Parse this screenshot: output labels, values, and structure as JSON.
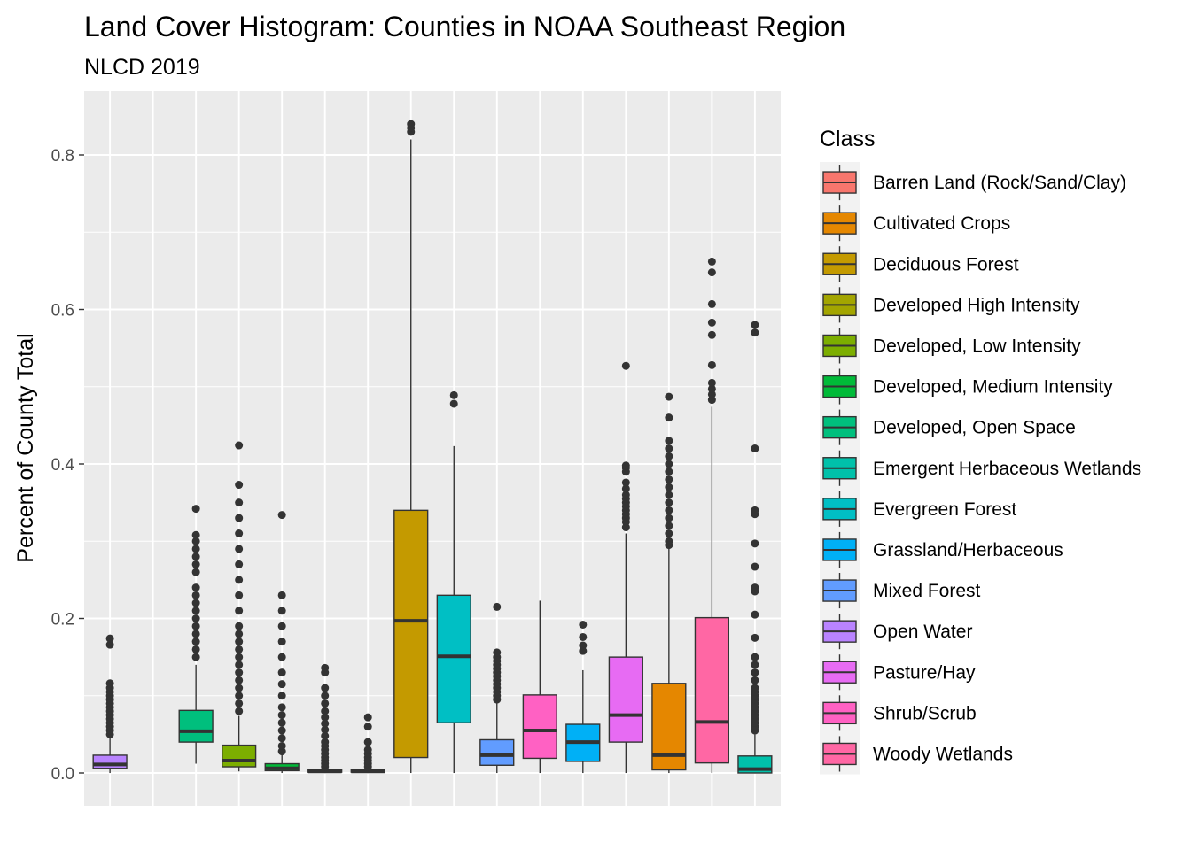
{
  "chart_data": {
    "type": "boxplot",
    "title": "Land Cover Histogram: Counties in NOAA Southeast Region",
    "subtitle": "NLCD 2019",
    "xlabel": "",
    "ylabel": "Percent of County Total",
    "ylim": [
      -0.04,
      0.88
    ],
    "yticks": [
      0.0,
      0.2,
      0.4,
      0.6,
      0.8
    ],
    "ytick_labels": [
      "0.0",
      "0.2",
      "0.4",
      "0.6",
      "0.8"
    ],
    "grid": true,
    "legend": {
      "title": "Class",
      "position": "right"
    },
    "series": [
      {
        "name": "Open Water",
        "color": "#B983FF",
        "stats": {
          "min": 0.0,
          "q1": 0.006,
          "median": 0.011,
          "q3": 0.023,
          "max": 0.05
        },
        "outliers": [
          0.05,
          0.055,
          0.06,
          0.065,
          0.07,
          0.075,
          0.08,
          0.085,
          0.09,
          0.095,
          0.1,
          0.105,
          0.11,
          0.116,
          0.166,
          0.174
        ]
      },
      {
        "name": "Barren Land (Rock/Sand/Clay)",
        "color": "#F8766D",
        "stats": null,
        "outliers": []
      },
      {
        "name": "Developed, Open Space",
        "color": "#00BF7D",
        "stats": {
          "min": 0.012,
          "q1": 0.04,
          "median": 0.054,
          "q3": 0.081,
          "max": 0.14
        },
        "outliers": [
          0.15,
          0.16,
          0.17,
          0.18,
          0.19,
          0.2,
          0.21,
          0.22,
          0.23,
          0.24,
          0.26,
          0.27,
          0.28,
          0.29,
          0.3,
          0.308,
          0.342
        ]
      },
      {
        "name": "Developed, Low Intensity",
        "color": "#7CAE00",
        "stats": {
          "min": 0.002,
          "q1": 0.008,
          "median": 0.016,
          "q3": 0.036,
          "max": 0.074
        },
        "outliers": [
          0.08,
          0.09,
          0.1,
          0.11,
          0.12,
          0.13,
          0.14,
          0.15,
          0.16,
          0.17,
          0.18,
          0.19,
          0.21,
          0.23,
          0.25,
          0.27,
          0.29,
          0.31,
          0.33,
          0.35,
          0.373,
          0.424
        ]
      },
      {
        "name": "Developed, Medium Intensity",
        "color": "#00BA38",
        "stats": {
          "min": 0.0,
          "q1": 0.003,
          "median": 0.006,
          "q3": 0.012,
          "max": 0.024
        },
        "outliers": [
          0.028,
          0.035,
          0.045,
          0.055,
          0.065,
          0.075,
          0.085,
          0.1,
          0.115,
          0.13,
          0.15,
          0.17,
          0.19,
          0.21,
          0.23,
          0.334
        ]
      },
      {
        "name": "Developed High Intensity",
        "color": "#A3A500",
        "stats": {
          "min": 0.0,
          "q1": 0.001,
          "median": 0.002,
          "q3": 0.004,
          "max": 0.006
        },
        "outliers": [
          0.008,
          0.012,
          0.016,
          0.02,
          0.025,
          0.03,
          0.035,
          0.04,
          0.048,
          0.056,
          0.064,
          0.072,
          0.08,
          0.09,
          0.1,
          0.11,
          0.13,
          0.136
        ]
      },
      {
        "name": "Barren Land (Rock/Sand/Clay)",
        "color": "#F8766D",
        "stats": {
          "min": 0.0,
          "q1": 0.001,
          "median": 0.002,
          "q3": 0.004,
          "max": 0.006
        },
        "outliers": [
          0.008,
          0.012,
          0.016,
          0.02,
          0.025,
          0.03,
          0.04,
          0.06,
          0.072
        ]
      },
      {
        "name": "Deciduous Forest",
        "color": "#C49A00",
        "stats": {
          "min": 0.0,
          "q1": 0.02,
          "median": 0.197,
          "q3": 0.34,
          "max": 0.82
        },
        "outliers": [
          0.83,
          0.835,
          0.84
        ]
      },
      {
        "name": "Evergreen Forest",
        "color": "#00BFC4",
        "stats": {
          "min": 0.0,
          "q1": 0.065,
          "median": 0.151,
          "q3": 0.23,
          "max": 0.423
        },
        "outliers": [
          0.478,
          0.489
        ]
      },
      {
        "name": "Mixed Forest",
        "color": "#619CFF",
        "stats": {
          "min": 0.0,
          "q1": 0.01,
          "median": 0.023,
          "q3": 0.043,
          "max": 0.09
        },
        "outliers": [
          0.095,
          0.1,
          0.105,
          0.11,
          0.115,
          0.12,
          0.125,
          0.13,
          0.135,
          0.14,
          0.145,
          0.15,
          0.156,
          0.215
        ]
      },
      {
        "name": "Shrub/Scrub",
        "color": "#FF61C3",
        "stats": {
          "min": 0.0,
          "q1": 0.019,
          "median": 0.055,
          "q3": 0.101,
          "max": 0.223
        },
        "outliers": []
      },
      {
        "name": "Grassland/Herbaceous",
        "color": "#00B0F6",
        "stats": {
          "min": 0.0,
          "q1": 0.015,
          "median": 0.04,
          "q3": 0.063,
          "max": 0.133
        },
        "outliers": [
          0.158,
          0.165,
          0.176,
          0.192
        ]
      },
      {
        "name": "Pasture/Hay",
        "color": "#E76BF3",
        "stats": {
          "min": 0.0,
          "q1": 0.04,
          "median": 0.075,
          "q3": 0.15,
          "max": 0.31
        },
        "outliers": [
          0.318,
          0.325,
          0.33,
          0.335,
          0.34,
          0.345,
          0.35,
          0.355,
          0.36,
          0.368,
          0.376,
          0.39,
          0.395,
          0.398,
          0.527
        ]
      },
      {
        "name": "Cultivated Crops",
        "color": "#E58700",
        "stats": {
          "min": 0.0,
          "q1": 0.004,
          "median": 0.023,
          "q3": 0.116,
          "max": 0.29
        },
        "outliers": [
          0.295,
          0.3,
          0.31,
          0.32,
          0.33,
          0.34,
          0.35,
          0.36,
          0.37,
          0.38,
          0.39,
          0.4,
          0.41,
          0.42,
          0.43,
          0.46,
          0.487
        ]
      },
      {
        "name": "Woody Wetlands",
        "color": "#FF67A4",
        "stats": {
          "min": 0.0,
          "q1": 0.013,
          "median": 0.066,
          "q3": 0.201,
          "max": 0.474
        },
        "outliers": [
          0.483,
          0.49,
          0.497,
          0.505,
          0.528,
          0.567,
          0.583,
          0.607,
          0.648,
          0.662
        ]
      },
      {
        "name": "Emergent Herbaceous Wetlands",
        "color": "#00C1AA",
        "stats": {
          "min": 0.0,
          "q1": 0.0,
          "median": 0.005,
          "q3": 0.022,
          "max": 0.05
        },
        "outliers": [
          0.055,
          0.06,
          0.065,
          0.07,
          0.075,
          0.08,
          0.085,
          0.09,
          0.095,
          0.1,
          0.105,
          0.11,
          0.12,
          0.13,
          0.14,
          0.15,
          0.175,
          0.205,
          0.235,
          0.24,
          0.267,
          0.297,
          0.335,
          0.34,
          0.42,
          0.57,
          0.58
        ]
      }
    ],
    "legend_entries": [
      {
        "label": "Barren Land (Rock/Sand/Clay)",
        "color": "#F8766D"
      },
      {
        "label": "Cultivated Crops",
        "color": "#E58700"
      },
      {
        "label": "Deciduous Forest",
        "color": "#C49A00"
      },
      {
        "label": "Developed High Intensity",
        "color": "#A3A500"
      },
      {
        "label": "Developed, Low Intensity",
        "color": "#7CAE00"
      },
      {
        "label": "Developed, Medium Intensity",
        "color": "#00BA38"
      },
      {
        "label": "Developed, Open Space",
        "color": "#00BF7D"
      },
      {
        "label": "Emergent Herbaceous Wetlands",
        "color": "#00C1AA"
      },
      {
        "label": "Evergreen Forest",
        "color": "#00BFC4"
      },
      {
        "label": "Grassland/Herbaceous",
        "color": "#00B0F6"
      },
      {
        "label": "Mixed Forest",
        "color": "#619CFF"
      },
      {
        "label": "Open Water",
        "color": "#B983FF"
      },
      {
        "label": "Pasture/Hay",
        "color": "#E76BF3"
      },
      {
        "label": "Shrub/Scrub",
        "color": "#FF61C3"
      },
      {
        "label": "Woody Wetlands",
        "color": "#FF67A4"
      }
    ]
  }
}
